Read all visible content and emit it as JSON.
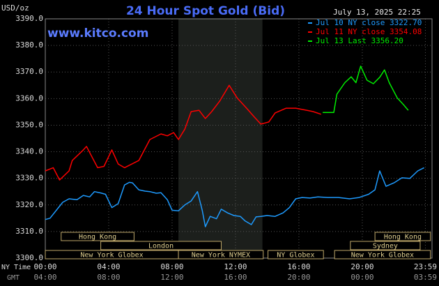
{
  "chart_data": {
    "type": "line",
    "title": "24 Hour Spot Gold (Bid)",
    "unit_label": "USD/oz",
    "timestamp": "July 13, 2025 22:25",
    "watermark": "www.kitco.com",
    "xlim": [
      0,
      24.4
    ],
    "ylim": [
      3300,
      3390
    ],
    "yticks": [
      {
        "value": 3390,
        "label": "3390.0"
      },
      {
        "value": 3380,
        "label": "3380.0"
      },
      {
        "value": 3370,
        "label": "3370.0"
      },
      {
        "value": 3360,
        "label": "3360.0"
      },
      {
        "value": 3350,
        "label": "3350.0"
      },
      {
        "value": 3340,
        "label": "3340.0"
      },
      {
        "value": 3330,
        "label": "3330.0"
      },
      {
        "value": 3320,
        "label": "3320.0"
      },
      {
        "value": 3310,
        "label": "3310.0"
      },
      {
        "value": 3300,
        "label": "3300.0"
      }
    ],
    "xticks": [
      {
        "value": 0,
        "label": "00:00"
      },
      {
        "value": 4,
        "label": "04:00"
      },
      {
        "value": 8,
        "label": "08:00"
      },
      {
        "value": 12,
        "label": "12:00"
      },
      {
        "value": 16,
        "label": "16:00"
      },
      {
        "value": 20,
        "label": "20:00"
      },
      {
        "value": 23.98,
        "label": "23:59"
      }
    ],
    "x_axis_label": "NY Time",
    "x2_axis_label": "GMT",
    "x2_tick_labels": [
      "04:00",
      "08:00",
      "12:00",
      "16:00",
      "20:00",
      "00:00",
      "03:59"
    ],
    "grid": true,
    "highlight": [
      8.4,
      13.7
    ],
    "series": [
      {
        "name": "Jul 10 NY close 3322.70",
        "color": "#1e9bff",
        "x": [
          0,
          0.3,
          0.7,
          1.1,
          1.5,
          2.0,
          2.4,
          2.8,
          3.1,
          3.5,
          3.8,
          4.2,
          4.6,
          5.0,
          5.3,
          5.5,
          5.9,
          6.3,
          6.6,
          7.0,
          7.3,
          7.7,
          8.0,
          8.4,
          8.8,
          9.2,
          9.6,
          9.9,
          10.1,
          10.4,
          10.8,
          11.1,
          11.5,
          11.9,
          12.3,
          12.6,
          13.0,
          13.3,
          13.6,
          14.0,
          14.5,
          15.0,
          15.4,
          15.8,
          16.2,
          16.7,
          17.2,
          17.8,
          18.5,
          19.2,
          19.8,
          20.4,
          20.8,
          21.1,
          21.5,
          22.0,
          22.5,
          23.0,
          23.5,
          23.9
        ],
        "values": [
          3314.5,
          3315,
          3318,
          3321,
          3322.3,
          3322,
          3323.6,
          3323,
          3325,
          3324.5,
          3324,
          3319,
          3320.5,
          3327.5,
          3328.5,
          3328.3,
          3325.7,
          3325.2,
          3325,
          3324.4,
          3324.6,
          3322,
          3318,
          3317.8,
          3320,
          3321.5,
          3325,
          3318,
          3311.8,
          3315.7,
          3314.8,
          3318.4,
          3317,
          3316,
          3315.7,
          3314,
          3312.6,
          3315.5,
          3315.7,
          3316,
          3315.7,
          3317,
          3319,
          3322.3,
          3322.8,
          3322.6,
          3323,
          3322.8,
          3322.8,
          3322.3,
          3322.8,
          3324,
          3325.7,
          3332.8,
          3327,
          3328.3,
          3330.2,
          3330,
          3332.8,
          3334
        ]
      },
      {
        "name": "Jul 11 NY close 3354.08",
        "color": "#ff0000",
        "x": [
          0,
          0.5,
          0.9,
          1.5,
          1.7,
          2.4,
          2.6,
          3.3,
          3.7,
          4.2,
          4.6,
          5.0,
          5.9,
          6.6,
          7.3,
          7.7,
          8.1,
          8.4,
          8.8,
          9.2,
          9.7,
          10.1,
          10.5,
          11.0,
          11.6,
          12.1,
          12.7,
          13.2,
          13.6,
          14.1,
          14.5,
          15.2,
          15.8,
          16.5,
          16.9,
          17.4
        ],
        "values": [
          3332.8,
          3334,
          3329.4,
          3332.8,
          3336.7,
          3340.7,
          3342,
          3334,
          3334.5,
          3340.7,
          3335.4,
          3334,
          3336.7,
          3344.6,
          3346.7,
          3346,
          3347.2,
          3344.6,
          3348.5,
          3355.1,
          3355.6,
          3352.5,
          3355.1,
          3359,
          3365,
          3360.3,
          3356.4,
          3353,
          3350.4,
          3351.2,
          3354.6,
          3356.4,
          3356.4,
          3355.6,
          3355.1,
          3354.1
        ]
      },
      {
        "name": "Jul 13 Last 3356.20",
        "color": "#00ee00",
        "x": [
          17.5,
          18.2,
          18.4,
          18.9,
          19.3,
          19.6,
          19.9,
          20.3,
          20.7,
          21.1,
          21.4,
          21.7,
          22.2,
          22.6,
          22.9
        ],
        "values": [
          3354.8,
          3354.8,
          3361.7,
          3366,
          3368.2,
          3366,
          3372.2,
          3366.9,
          3365.6,
          3368,
          3370.8,
          3366,
          3360.3,
          3357.7,
          3355.6
        ]
      }
    ],
    "session_rows": [
      [
        {
          "label": "Hong Kong",
          "start": 1.0,
          "end": 5.6
        },
        {
          "label": "Hong Kong",
          "start": 20.8,
          "end": 24.3
        }
      ],
      [
        {
          "label": "London",
          "start": 3.5,
          "end": 11.1
        },
        {
          "label": "Sydney",
          "start": 19.25,
          "end": 23.65
        }
      ],
      [
        {
          "label": "New York Globex",
          "start": 0,
          "end": 8.4
        },
        {
          "label": "New York NYMEX",
          "start": 8.4,
          "end": 13.75
        },
        {
          "label": "NY Globex",
          "start": 14.05,
          "end": 17.55
        },
        {
          "label": "New York Globex",
          "start": 18.25,
          "end": 24.3
        }
      ]
    ]
  }
}
